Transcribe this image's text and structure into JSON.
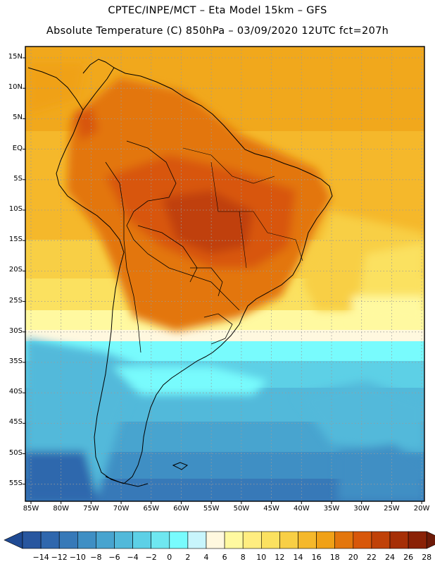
{
  "title": {
    "line1": "CPTEC/INPE/MCT –  Eta Model 15km – GFS",
    "line2": "Absolute Temperature (C) 850hPa – 03/09/2020 12UTC fct=207h"
  },
  "lat_labels": [
    "15N",
    "10N",
    "5N",
    "EQ",
    "5S",
    "10S",
    "15S",
    "20S",
    "25S",
    "30S",
    "35S",
    "40S",
    "45S",
    "50S",
    "55S"
  ],
  "lon_labels": [
    "85W",
    "80W",
    "75W",
    "70W",
    "65W",
    "60W",
    "55W",
    "50W",
    "45W",
    "40W",
    "35W",
    "30W",
    "25W",
    "20W"
  ],
  "colorbar": {
    "labels": [
      "-14",
      "-12",
      "-10",
      "-8",
      "-6",
      "-4",
      "-2",
      "0",
      "2",
      "4",
      "6",
      "8",
      "10",
      "12",
      "14",
      "16",
      "18",
      "20",
      "22",
      "24",
      "26",
      "28"
    ],
    "colors": [
      "#1f4a93",
      "#28569f",
      "#2f67ad",
      "#3779b8",
      "#3f8fc4",
      "#48a4cf",
      "#52b9da",
      "#5dd0e6",
      "#6fe7f0",
      "#78fbfd",
      "#c8f5fc",
      "#fff8df",
      "#fff9a0",
      "#ffed80",
      "#fbe160",
      "#f8cf45",
      "#f5b82b",
      "#f0a117",
      "#e3760d",
      "#d8570a",
      "#c04107",
      "#a62f06",
      "#8a2106",
      "#6d1a08"
    ]
  },
  "map": {
    "region": "South America",
    "variable": "Absolute Temperature (C)",
    "level": "850hPa"
  }
}
